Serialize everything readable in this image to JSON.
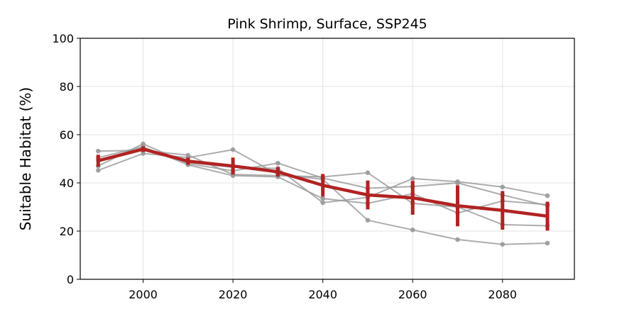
{
  "chart_data": {
    "type": "line",
    "title": "Pink Shrimp, Surface, SSP245",
    "xlabel": "",
    "ylabel": "Suitable Habitat (%)",
    "xlim": [
      1986,
      2096
    ],
    "ylim": [
      0,
      100
    ],
    "xticks": [
      2000,
      2020,
      2040,
      2060,
      2080
    ],
    "yticks": [
      0,
      20,
      40,
      60,
      80,
      100
    ],
    "grid": true,
    "x": [
      1990,
      2000,
      2010,
      2020,
      2030,
      2040,
      2050,
      2060,
      2070,
      2080,
      2090
    ],
    "series": [
      {
        "values": [
          53.2,
          53.5,
          51.5,
          43.5,
          43.0,
          42.5,
          44.2,
          31.5,
          30.0,
          22.7,
          22.2
        ]
      },
      {
        "values": [
          45.2,
          52.2,
          50.5,
          53.8,
          43.5,
          41.5,
          24.5,
          20.5,
          16.5,
          14.5,
          15.0
        ]
      },
      {
        "values": [
          49.5,
          54.5,
          48.5,
          46.5,
          46.0,
          31.8,
          34.0,
          41.8,
          40.5,
          38.3,
          34.7
        ]
      },
      {
        "values": [
          50.5,
          55.0,
          47.5,
          43.0,
          42.5,
          33.5,
          31.5,
          35.5,
          27.5,
          32.5,
          31.0
        ]
      },
      {
        "values": [
          47.0,
          56.2,
          48.0,
          45.0,
          48.2,
          42.0,
          37.8,
          38.5,
          40.0,
          35.0,
          30.5
        ]
      }
    ],
    "mean": {
      "values": [
        49.2,
        54.0,
        49.0,
        47.0,
        44.6,
        39.0,
        35.0,
        33.8,
        30.5,
        28.6,
        26.2
      ],
      "err": [
        2.5,
        1.2,
        1.5,
        3.5,
        2.0,
        4.7,
        6.0,
        7.0,
        8.5,
        8.0,
        6.0
      ],
      "color": "#b22222"
    },
    "individual_color": "#999999"
  }
}
